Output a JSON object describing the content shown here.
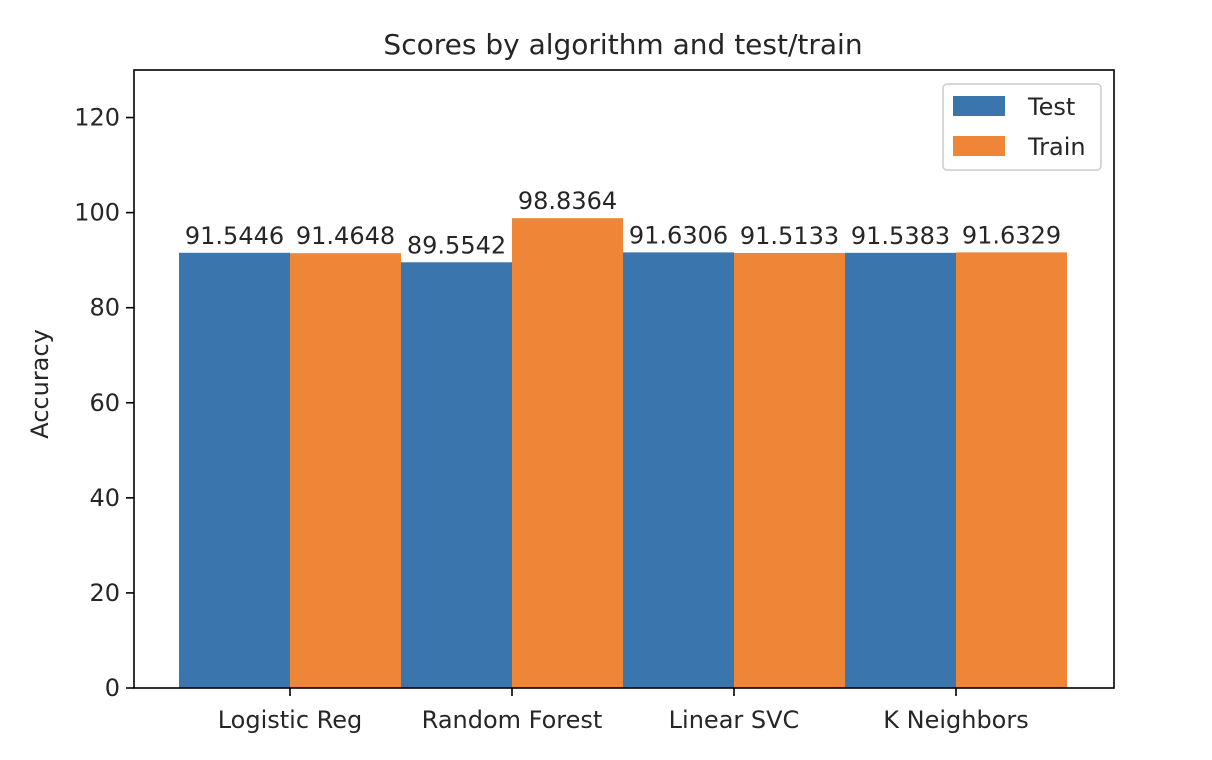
{
  "chart_data": {
    "type": "bar",
    "title": "Scores by algorithm and test/train",
    "xlabel": "",
    "ylabel": "Accuracy",
    "categories": [
      "Logistic Reg",
      "Random Forest",
      "Linear SVC",
      "K Neighbors"
    ],
    "series": [
      {
        "name": "Test",
        "values": [
          91.5446,
          89.5542,
          91.6306,
          91.5383
        ],
        "labels": [
          "91.5446",
          "89.5542",
          "91.6306",
          "91.5383"
        ],
        "color": "#3a75ae"
      },
      {
        "name": "Train",
        "values": [
          91.4648,
          98.8364,
          91.5133,
          91.6329
        ],
        "labels": [
          "91.4648",
          "98.8364",
          "91.5133",
          "91.6329"
        ],
        "color": "#ee8537"
      }
    ],
    "ylim": [
      0,
      130
    ],
    "yticks": [
      0,
      20,
      40,
      60,
      80,
      100,
      120
    ],
    "ytick_labels": [
      "0",
      "20",
      "40",
      "60",
      "80",
      "100",
      "120"
    ],
    "grid": false,
    "legend_position": "top-right"
  }
}
